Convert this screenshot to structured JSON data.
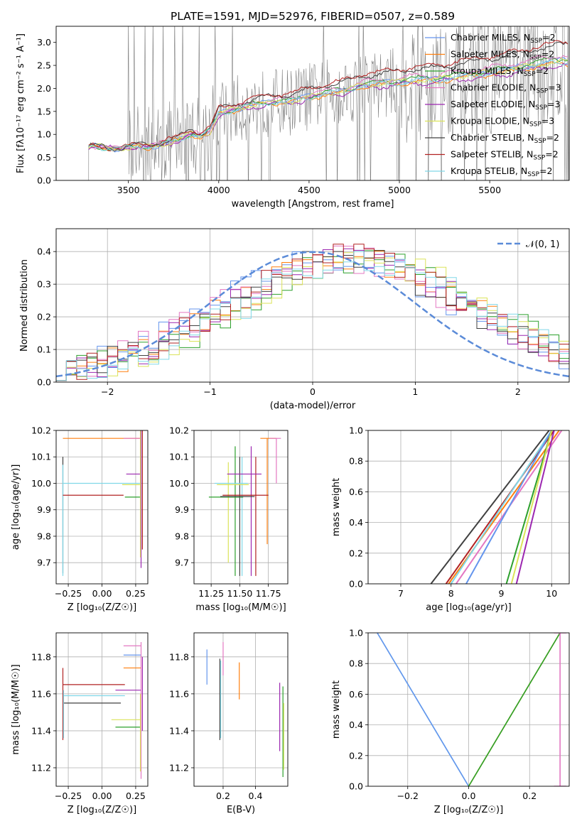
{
  "figure": {
    "title": "PLATE=1591, MJD=52976, FIBERID=0507, z=0.589"
  },
  "chart_data": [
    {
      "id": "spectrum",
      "type": "line",
      "xlabel": "wavelength [Angstrom, rest frame]",
      "ylabel": "Flux [fλ10⁻¹⁷ erg cm⁻² s⁻¹ A⁻¹]",
      "xlim": [
        3100,
        5940
      ],
      "ylim": [
        0,
        3.35
      ],
      "xticks": [
        3500,
        4000,
        4500,
        5000,
        5500
      ],
      "yticks": [
        0.0,
        0.5,
        1.0,
        1.5,
        2.0,
        2.5,
        3.0
      ],
      "grid": false,
      "legend_placement": "top-right",
      "data_spectrum": {
        "color": "#808080",
        "x_start": 3280,
        "x_end": 5940,
        "step": 4
      },
      "models": [
        {
          "name": "Chabrier MILES, N_SSP=2",
          "color": "#6495ed",
          "offset": 0.02
        },
        {
          "name": "Salpeter MILES, N_SSP=2",
          "color": "#ff7f0e",
          "offset": -0.06
        },
        {
          "name": "Kroupa MILES, N_SSP=2",
          "color": "#2ca02c",
          "offset": 0.05
        },
        {
          "name": "Chabrier ELODIE, N_SSP=3",
          "color": "#e377c2",
          "offset": 0.12
        },
        {
          "name": "Salpeter ELODIE, N_SSP=3",
          "color": "#9c27b0",
          "offset": -0.1
        },
        {
          "name": "Kroupa ELODIE, N_SSP=3",
          "color": "#dbe35a",
          "offset": 0.0
        },
        {
          "name": "Chabrier STELIB, N_SSP=2",
          "color": "#404040",
          "offset": 0.35
        },
        {
          "name": "Salpeter STELIB, N_SSP=2",
          "color": "#b22222",
          "offset": 0.42
        },
        {
          "name": "Kroupa STELIB, N_SSP=2",
          "color": "#80d8e8",
          "offset": -0.02
        }
      ],
      "model_continuum": {
        "x": [
          3280,
          3300,
          3350,
          3400,
          3450,
          3500,
          3550,
          3600,
          3650,
          3700,
          3750,
          3800,
          3850,
          3900,
          3950,
          4000,
          4100,
          4200,
          4300,
          4400,
          4500,
          4600,
          4700,
          4800,
          4900,
          5000,
          5100,
          5200,
          5300,
          5400,
          5500,
          5600,
          5700,
          5800,
          5900
        ],
        "y": [
          0.75,
          0.75,
          0.72,
          0.7,
          0.68,
          0.72,
          0.74,
          0.73,
          0.75,
          0.8,
          0.85,
          0.92,
          1.02,
          0.95,
          1.05,
          1.45,
          1.55,
          1.65,
          1.7,
          1.72,
          1.82,
          1.9,
          1.95,
          2.08,
          2.1,
          2.15,
          2.18,
          2.2,
          2.25,
          2.3,
          2.35,
          2.4,
          2.48,
          2.55,
          2.6
        ]
      }
    },
    {
      "id": "residuals",
      "type": "line",
      "xlabel": "(data-model)/error",
      "ylabel": "Normed distribution",
      "xlim": [
        -2.5,
        2.5
      ],
      "ylim": [
        0,
        0.47
      ],
      "xticks": [
        -2,
        -1,
        0,
        1,
        2
      ],
      "yticks": [
        0.0,
        0.1,
        0.2,
        0.3,
        0.4
      ],
      "grid": true,
      "legend_placement": "top-right",
      "gaussian": {
        "label": "𝒩(0, 1)",
        "color": "#5b8bd8",
        "mean": 0,
        "sigma": 1
      },
      "bin_edges": [
        -2.5,
        2.5
      ],
      "n_bins": 50
    },
    {
      "id": "age_vs_Z",
      "type": "scatter",
      "xlabel": "Z [log₁₀(Z/Z☉)]",
      "ylabel": "age  [log₁₀(age/yr)]",
      "xlim": [
        -0.34,
        0.34
      ],
      "ylim": [
        9.62,
        10.2
      ],
      "xticks": [
        -0.25,
        0.0,
        0.25
      ],
      "yticks": [
        9.7,
        9.8,
        9.9,
        10.0,
        10.1,
        10.2
      ],
      "grid": true
    },
    {
      "id": "age_vs_mass",
      "type": "scatter",
      "xlabel": "mass [log₁₀(M/M☉)]",
      "ylabel": "",
      "xlim": [
        11.1,
        11.92
      ],
      "ylim": [
        9.62,
        10.2
      ],
      "xticks": [
        11.25,
        11.5,
        11.75
      ],
      "yticks": [
        9.7,
        9.8,
        9.9,
        10.0,
        10.1,
        10.2
      ],
      "grid": true
    },
    {
      "id": "mass_weight_vs_age",
      "type": "line",
      "xlabel": "age  [log₁₀(age/yr)]",
      "ylabel": "mass weight",
      "xlim": [
        6.35,
        10.35
      ],
      "ylim": [
        0,
        1.0
      ],
      "xticks": [
        7,
        8,
        9,
        10
      ],
      "yticks": [
        0.0,
        0.2,
        0.4,
        0.6,
        0.8,
        1.0
      ],
      "grid": true,
      "series": [
        {
          "color": "#404040",
          "x": [
            7.6,
            9.95
          ],
          "y": [
            0.0,
            1.0
          ]
        },
        {
          "color": "#ff7f0e",
          "x": [
            7.95,
            10.15
          ],
          "y": [
            0.0,
            1.0
          ]
        },
        {
          "color": "#b22222",
          "x": [
            7.9,
            10.05
          ],
          "y": [
            0.0,
            1.0
          ]
        },
        {
          "color": "#e377c2",
          "x": [
            8.1,
            10.2
          ],
          "y": [
            0.0,
            1.0
          ]
        },
        {
          "color": "#80d8e8",
          "x": [
            8.0,
            10.0
          ],
          "y": [
            0.0,
            1.0
          ]
        },
        {
          "color": "#6495ed",
          "x": [
            8.3,
            10.0
          ],
          "y": [
            0.0,
            1.0
          ]
        },
        {
          "color": "#2ca02c",
          "x": [
            9.1,
            10.0
          ],
          "y": [
            0.0,
            1.0
          ]
        },
        {
          "color": "#dbe35a",
          "x": [
            9.2,
            10.0
          ],
          "y": [
            0.0,
            1.0
          ]
        },
        {
          "color": "#9c27b0",
          "x": [
            9.3,
            10.05
          ],
          "y": [
            0.0,
            1.0
          ]
        }
      ]
    },
    {
      "id": "mass_vs_Z",
      "type": "scatter",
      "xlabel": "Z [log₁₀(Z/Z☉)]",
      "ylabel": "mass [log₁₀(M/M☉)]",
      "xlim": [
        -0.34,
        0.34
      ],
      "ylim": [
        11.1,
        11.93
      ],
      "xticks": [
        -0.25,
        0.0,
        0.25
      ],
      "yticks": [
        11.2,
        11.4,
        11.6,
        11.8
      ],
      "grid": true
    },
    {
      "id": "mass_vs_EBV",
      "type": "scatter",
      "xlabel": "E(B-V)",
      "ylabel": "",
      "xlim": [
        0.02,
        0.6
      ],
      "ylim": [
        11.1,
        11.93
      ],
      "xticks": [
        0.2,
        0.4
      ],
      "yticks": [
        11.2,
        11.4,
        11.6,
        11.8
      ],
      "grid": true
    },
    {
      "id": "mass_weight_vs_Z",
      "type": "line",
      "xlabel": "Z [log₁₀(Z/Z☉)]",
      "ylabel": "mass weight",
      "xlim": [
        -0.33,
        0.33
      ],
      "ylim": [
        0,
        1.0
      ],
      "xticks": [
        -0.2,
        0.0,
        0.2
      ],
      "yticks": [
        0.0,
        0.2,
        0.4,
        0.6,
        0.8,
        1.0
      ],
      "grid": true
    }
  ]
}
